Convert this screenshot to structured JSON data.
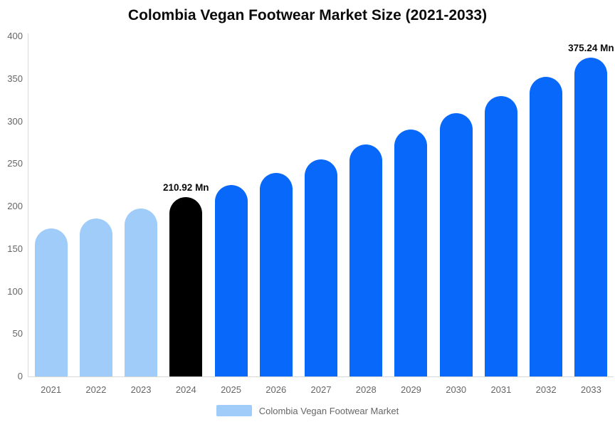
{
  "title": "Colombia Vegan Footwear Market Size (2021-2033)",
  "chart_data": {
    "type": "bar",
    "title": "Colombia Vegan Footwear Market Size (2021-2033)",
    "categories": [
      "2021",
      "2022",
      "2023",
      "2024",
      "2025",
      "2026",
      "2027",
      "2028",
      "2029",
      "2030",
      "2031",
      "2032",
      "2033"
    ],
    "series": [
      {
        "name": "Colombia Vegan Footwear Market",
        "values": [
          174.1,
          185.6,
          197.8,
          210.92,
          224.9,
          239.7,
          255.6,
          272.5,
          290.5,
          309.7,
          330.1,
          352.0,
          375.24
        ]
      }
    ],
    "unit": "Mn",
    "ylim": [
      0,
      400
    ],
    "yticks": [
      0,
      50,
      100,
      150,
      200,
      250,
      300,
      350,
      400
    ],
    "grid": false,
    "legend_position": "bottom",
    "bar_colors": [
      "#A0CCFA",
      "#A0CCFA",
      "#A0CCFA",
      "#000000",
      "#0868FA",
      "#0868FA",
      "#0868FA",
      "#0868FA",
      "#0868FA",
      "#0868FA",
      "#0868FA",
      "#0868FA",
      "#0868FA"
    ],
    "annotations": [
      {
        "category": "2024",
        "label": "210.92 Mn"
      },
      {
        "category": "2033",
        "label": "375.24 Mn"
      }
    ]
  },
  "legend": {
    "label": "Colombia Vegan Footwear Market",
    "swatch_color": "#A0CCFA"
  },
  "colors": {
    "light_blue": "#A0CCFA",
    "accent_blue": "#0868FA",
    "highlight_black": "#000000",
    "axis_line": "#D9D9D9",
    "axis_text": "#666666",
    "annotation_text": "#0A0A0A",
    "background": "#FFFFFF"
  }
}
